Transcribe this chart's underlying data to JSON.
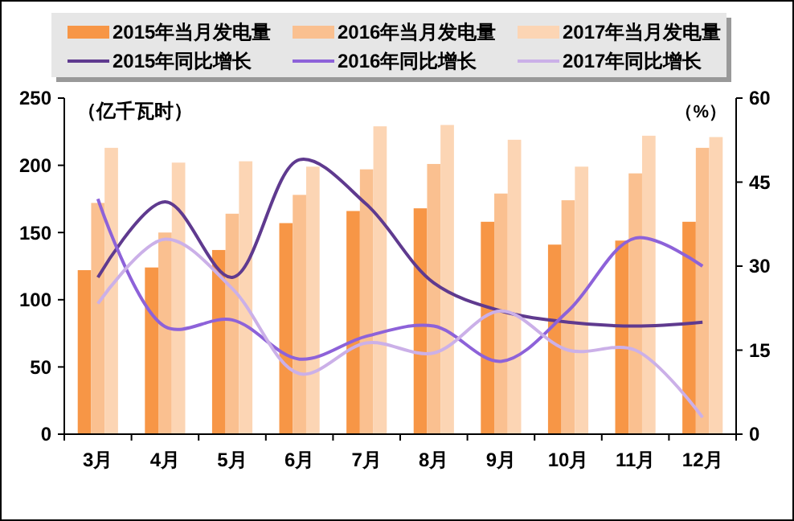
{
  "chart_data": {
    "type": "bar",
    "ylabel": "（亿千瓦时）",
    "y2label": "（%）",
    "categories": [
      "3月",
      "4月",
      "5月",
      "6月",
      "7月",
      "8月",
      "9月",
      "10月",
      "11月",
      "12月"
    ],
    "series": [
      {
        "name": "2015年当月发电量",
        "color": "#f79646",
        "values": [
          122,
          124,
          137,
          157,
          166,
          168,
          158,
          141,
          144,
          158
        ]
      },
      {
        "name": "2016年当月发电量",
        "color": "#fac090",
        "values": [
          172,
          150,
          164,
          178,
          197,
          201,
          179,
          174,
          194,
          213
        ]
      },
      {
        "name": "2017年当月发电量",
        "color": "#fcd5b4",
        "values": [
          213,
          202,
          203,
          199,
          229,
          230,
          219,
          199,
          222,
          221
        ]
      },
      {
        "name": "2015年同比增长",
        "type": "line",
        "axis": "y2",
        "color": "#5f3a8f",
        "values": [
          28,
          41.5,
          28,
          49,
          41,
          27,
          22,
          20,
          19.3,
          20
        ]
      },
      {
        "name": "2016年同比增长",
        "type": "line",
        "axis": "y2",
        "color": "#8d62d9",
        "values": [
          42,
          19.2,
          20.4,
          13.4,
          17.5,
          19.3,
          13,
          22,
          35,
          30
        ]
      },
      {
        "name": "2017年同比增长",
        "type": "line",
        "axis": "y2",
        "color": "#cbb0e8",
        "values": [
          23.3,
          34.8,
          26,
          10.8,
          16.3,
          14.5,
          22,
          15,
          15,
          3
        ]
      }
    ],
    "ylim": [
      0,
      250
    ],
    "yticks": [
      0,
      50,
      100,
      150,
      200,
      250
    ],
    "y2lim": [
      0,
      60
    ],
    "y2ticks": [
      0,
      15,
      30,
      45,
      60
    ],
    "legend": "top",
    "grid": false
  }
}
